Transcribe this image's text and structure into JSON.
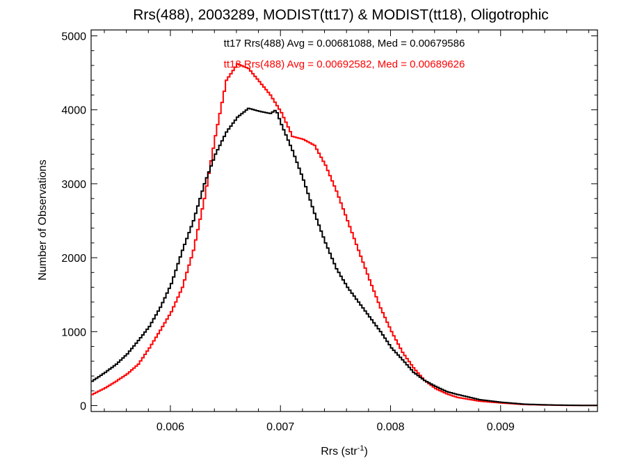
{
  "chart_data": {
    "type": "line",
    "step": true,
    "title": "Rrs(488), 2003289, MODIST(tt17) & MODIST(tt18), Oligotrophic",
    "xlabel": "Rrs (str",
    "xlabel_sup": "-1",
    "xlabel_suffix": ")",
    "ylabel": "Number of Observations",
    "xlim": [
      0.00528,
      0.00988
    ],
    "ylim": [
      -80,
      5080
    ],
    "xticks": [
      0.006,
      0.007,
      0.008,
      0.009
    ],
    "xtick_labels": [
      "0.006",
      "0.007",
      "0.008",
      "0.009"
    ],
    "yticks": [
      0,
      1000,
      2000,
      3000,
      4000,
      5000
    ],
    "ytick_labels": [
      "0",
      "1000",
      "2000",
      "3000",
      "4000",
      "5000"
    ],
    "grid": false,
    "annotations": [
      {
        "text": "tt17 Rrs(488) Avg = 0.00681088, Med = 0.00679586",
        "color": "#000000"
      },
      {
        "text": "tt18 Rrs(488) Avg = 0.00692582, Med = 0.00689626",
        "color": "#ff0000"
      }
    ],
    "series": [
      {
        "name": "tt17",
        "color": "#000000",
        "x": [
          0.00528,
          0.0054,
          0.0055,
          0.0056,
          0.0057,
          0.0058,
          0.0059,
          0.006,
          0.0061,
          0.0062,
          0.0063,
          0.0064,
          0.0065,
          0.0066,
          0.0067,
          0.0068,
          0.0069,
          0.00695,
          0.007,
          0.0071,
          0.0072,
          0.0073,
          0.0074,
          0.0075,
          0.0076,
          0.0077,
          0.0078,
          0.0079,
          0.008,
          0.0081,
          0.0082,
          0.0083,
          0.0084,
          0.0085,
          0.0086,
          0.0088,
          0.009,
          0.0092,
          0.0094,
          0.0096,
          0.0098
        ],
        "y": [
          330,
          450,
          560,
          700,
          880,
          1070,
          1330,
          1650,
          2100,
          2500,
          3000,
          3400,
          3700,
          3900,
          4020,
          3980,
          3950,
          4000,
          3800,
          3450,
          3050,
          2600,
          2200,
          1850,
          1600,
          1400,
          1200,
          1000,
          780,
          620,
          450,
          340,
          260,
          190,
          150,
          80,
          45,
          20,
          10,
          5,
          2
        ]
      },
      {
        "name": "tt18",
        "color": "#ff0000",
        "x": [
          0.00528,
          0.0054,
          0.0055,
          0.0056,
          0.0057,
          0.0058,
          0.0059,
          0.006,
          0.0061,
          0.0062,
          0.0063,
          0.0064,
          0.0065,
          0.0066,
          0.0067,
          0.0068,
          0.0069,
          0.007,
          0.0071,
          0.0072,
          0.0073,
          0.0074,
          0.0075,
          0.0076,
          0.0077,
          0.0078,
          0.0079,
          0.008,
          0.0081,
          0.0082,
          0.0083,
          0.0084,
          0.0085,
          0.0086,
          0.0088,
          0.009,
          0.0092,
          0.0094,
          0.0096,
          0.0098
        ],
        "y": [
          150,
          240,
          330,
          430,
          560,
          780,
          1020,
          1270,
          1600,
          2100,
          2800,
          3650,
          4400,
          4620,
          4560,
          4380,
          4200,
          3960,
          3640,
          3600,
          3520,
          3250,
          2900,
          2500,
          2100,
          1700,
          1320,
          1000,
          720,
          510,
          340,
          230,
          160,
          110,
          60,
          35,
          15,
          7,
          3,
          2
        ]
      }
    ]
  }
}
